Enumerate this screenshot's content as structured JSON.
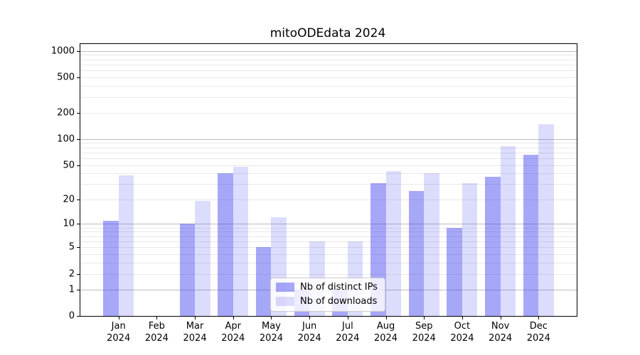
{
  "chart_data": {
    "type": "bar",
    "title": "mitoODEdata 2024",
    "categories": [
      "Jan 2024",
      "Feb 2024",
      "Mar 2024",
      "Apr 2024",
      "May 2024",
      "Jun 2024",
      "Jul 2024",
      "Aug 2024",
      "Sep 2024",
      "Oct 2024",
      "Nov 2024",
      "Dec 2024"
    ],
    "series": [
      {
        "name": "Nb of distinct IPs",
        "color": "rgba(64,64,240,0.46)",
        "values": [
          11,
          0,
          10,
          40,
          5,
          1,
          1,
          31,
          25,
          9,
          37,
          66
        ]
      },
      {
        "name": "Nb of downloads",
        "color": "rgba(64,64,240,0.185)",
        "values": [
          38,
          0,
          19,
          48,
          12,
          6,
          6,
          43,
          40,
          31,
          83,
          147
        ]
      }
    ],
    "yscale": "log1p",
    "yticks": [
      0,
      1,
      2,
      5,
      10,
      20,
      50,
      100,
      200,
      500,
      1000
    ],
    "ylim": [
      0,
      1199
    ],
    "xlabel": "",
    "ylabel": "",
    "grid": "on",
    "legend_position": "lower center inside"
  },
  "colors": {
    "major_grid": "#bdbdbd",
    "minor_grid": "#e8e8e8",
    "axis": "#000000",
    "background": "#ffffff"
  }
}
